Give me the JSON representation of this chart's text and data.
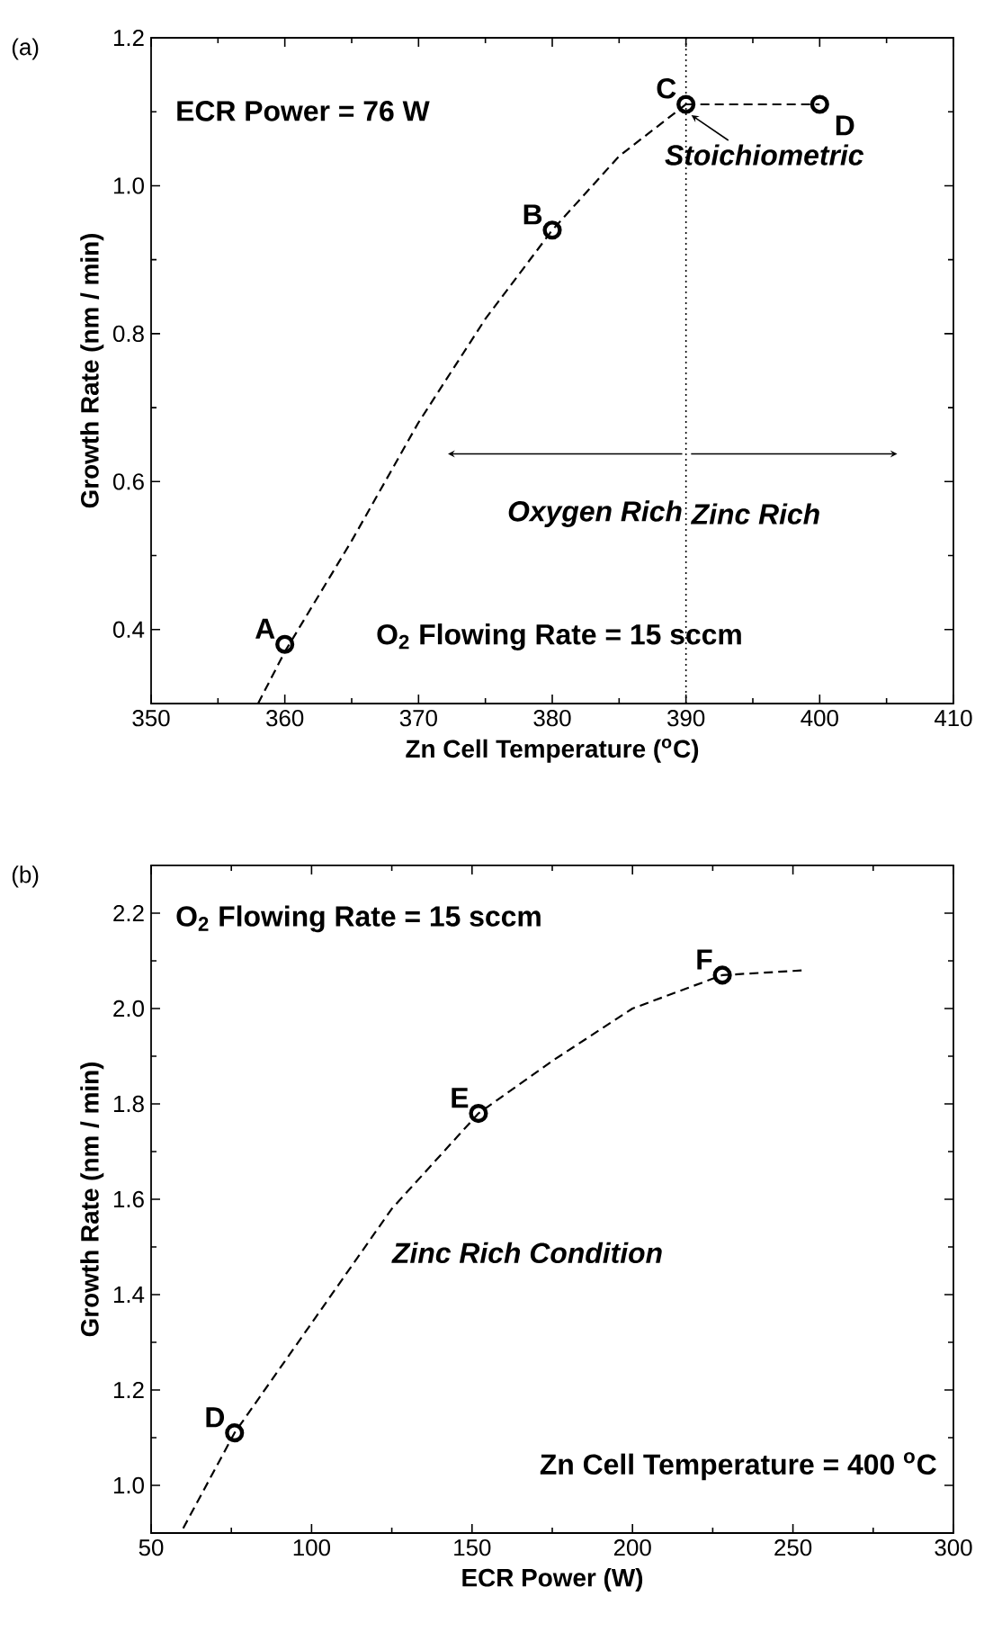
{
  "chart_data": [
    {
      "type": "scatter",
      "xlabel": "Zn Cell Temperature ($^{o}$C)",
      "ylabel": "Growth Rate (nm / min)",
      "xlim": [
        350,
        410
      ],
      "xticks": [
        350,
        360,
        370,
        380,
        390,
        400,
        410
      ],
      "ylim": [
        0.3,
        1.2
      ],
      "yticks": [
        {
          "value": 0.4,
          "label": "0.4"
        },
        {
          "value": 0.6,
          "label": "0.6"
        },
        {
          "value": 0.8,
          "label": "0.8"
        },
        {
          "value": 1.0,
          "label": "1.0"
        },
        {
          "value": 1.2,
          "label": "1.2"
        }
      ],
      "series": [
        {
          "color": "#000000",
          "marker": "circle",
          "x": [
            360,
            380,
            390,
            400
          ],
          "values": [
            0.38,
            0.94,
            1.11,
            1.11
          ]
        },
        {
          "type": "line",
          "color": "#000000",
          "marker": "none",
          "line_style": "dashed",
          "x": [
            358,
            360,
            365,
            370,
            375,
            380,
            385,
            390
          ],
          "values": [
            0.3,
            0.37,
            0.52,
            0.68,
            0.82,
            0.94,
            1.04,
            1.11
          ]
        },
        {
          "type": "line",
          "color": "#000000",
          "marker": "none",
          "line_style": "dashed",
          "x": [
            390,
            400
          ],
          "values": [
            1.11,
            1.11
          ]
        }
      ],
      "ref_lines": [
        {
          "axis": "x",
          "value": 390,
          "line_style": "dotted",
          "color": "#000000"
        }
      ],
      "annotations": [
        "(a)",
        "ECR Power = 76 W",
        "O$_{2}$ Flowing Rate = 15 sccm",
        "Oxygen Rich",
        "Zinc Rich",
        {
          "text": "Stoichiometric",
          "x": 390,
          "y": 1.11
        },
        {
          "text": "A",
          "x": 360,
          "y": 0.38
        },
        {
          "text": "B",
          "x": 380,
          "y": 0.94
        },
        {
          "text": "C",
          "x": 390,
          "y": 1.11
        },
        {
          "text": "D",
          "x": 400,
          "y": 1.11
        }
      ]
    },
    {
      "type": "scatter",
      "xlabel": "ECR Power (W)",
      "ylabel": "Growth Rate (nm / min)",
      "xlim": [
        50,
        300
      ],
      "xticks": [
        50,
        100,
        150,
        200,
        250,
        300
      ],
      "ylim": [
        0.9,
        2.3
      ],
      "yticks": [
        {
          "value": 1.0,
          "label": "1.0"
        },
        {
          "value": 1.2,
          "label": "1.2"
        },
        {
          "value": 1.4,
          "label": "1.4"
        },
        {
          "value": 1.6,
          "label": "1.6"
        },
        {
          "value": 1.8,
          "label": "1.8"
        },
        {
          "value": 2.0,
          "label": "2.0"
        },
        {
          "value": 2.2,
          "label": "2.2"
        }
      ],
      "series": [
        {
          "color": "#000000",
          "marker": "circle",
          "x": [
            76,
            152,
            228
          ],
          "values": [
            1.11,
            1.78,
            2.07
          ]
        },
        {
          "type": "line",
          "color": "#000000",
          "marker": "none",
          "line_style": "dashed",
          "x": [
            60,
            76,
            100,
            125,
            152,
            175,
            200,
            228,
            253
          ],
          "values": [
            0.91,
            1.11,
            1.34,
            1.58,
            1.78,
            1.89,
            2.0,
            2.07,
            2.08
          ]
        }
      ],
      "annotations": [
        "(b)",
        "O$_{2}$ Flowing Rate = 15 sccm",
        "Zinc Rich Condition",
        "Zn Cell Temperature = 400 $^{o}$C",
        {
          "text": "D",
          "x": 76,
          "y": 1.11
        },
        {
          "text": "E",
          "x": 152,
          "y": 1.78
        },
        {
          "text": "F",
          "x": 228,
          "y": 2.07
        }
      ]
    }
  ]
}
